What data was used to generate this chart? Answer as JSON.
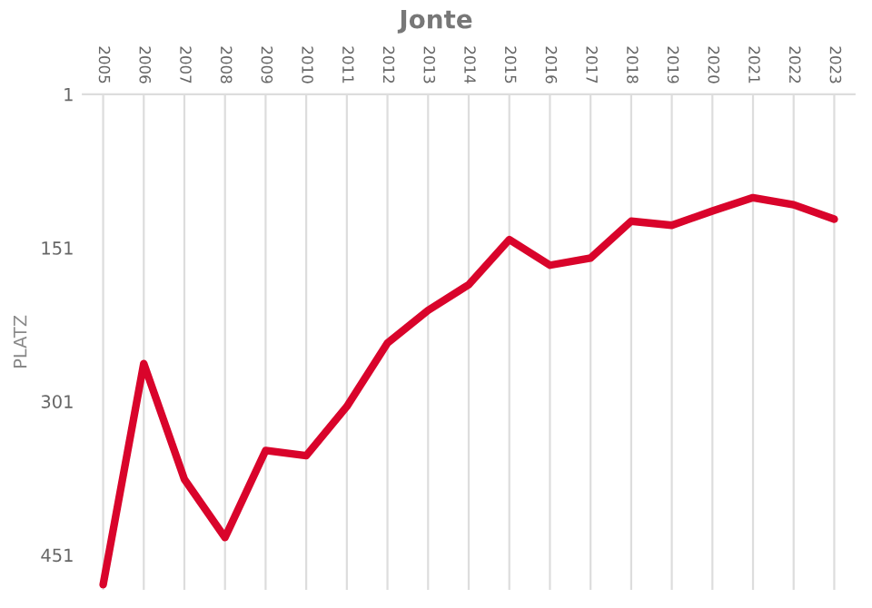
{
  "chart_data": {
    "type": "line",
    "title": "Jonte",
    "ylabel": "PLATZ",
    "categories": [
      "2005",
      "2006",
      "2007",
      "2008",
      "2009",
      "2010",
      "2011",
      "2012",
      "2013",
      "2014",
      "2015",
      "2016",
      "2017",
      "2018",
      "2019",
      "2020",
      "2021",
      "2022",
      "2023"
    ],
    "series": [
      {
        "color": "#d9042b",
        "values": [
          480,
          264,
          377,
          434,
          349,
          354,
          306,
          244,
          212,
          187,
          143,
          168,
          161,
          125,
          129,
          115,
          102,
          109,
          123
        ]
      }
    ],
    "ylim": [
      485,
      1
    ],
    "yticks": [
      1,
      151,
      301,
      451
    ],
    "grid": "x",
    "legend": false,
    "marker": "none",
    "line_style": "solid"
  }
}
